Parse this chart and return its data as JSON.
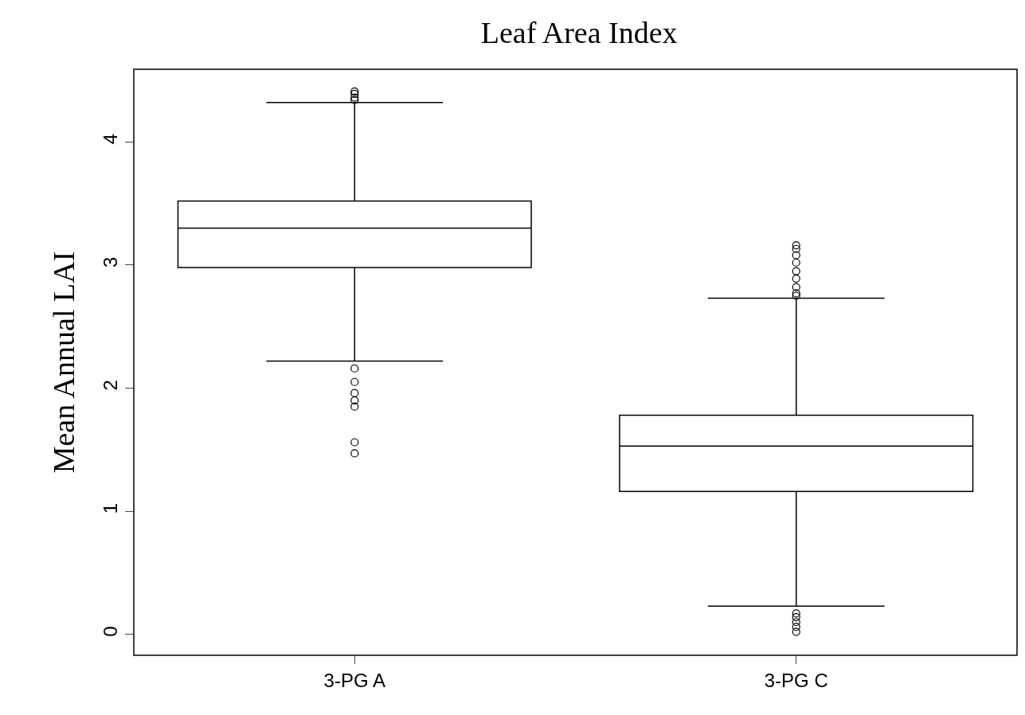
{
  "chart_data": {
    "type": "box",
    "title": "Leaf Area Index",
    "ylabel": "Mean Annual LAI",
    "categories": [
      "3-PG A",
      "3-PG C"
    ],
    "boxes": [
      {
        "low": 2.22,
        "q1": 2.98,
        "median": 3.3,
        "q3": 3.52,
        "high": 4.32,
        "outliers": [
          4.41,
          4.39,
          4.36,
          4.34,
          2.16,
          2.05,
          1.96,
          1.9,
          1.85,
          1.56,
          1.47
        ]
      },
      {
        "low": 0.23,
        "q1": 1.16,
        "median": 1.53,
        "q3": 1.78,
        "high": 2.73,
        "outliers": [
          3.16,
          3.13,
          3.08,
          3.02,
          2.95,
          2.89,
          2.82,
          2.77,
          2.75,
          0.17,
          0.14,
          0.1,
          0.06,
          0.02
        ]
      }
    ],
    "color": "#000000",
    "marker": "circle",
    "ylim": [
      -0.17,
      4.59
    ],
    "yticks": [
      0,
      1,
      2,
      3,
      4
    ],
    "grid": false
  }
}
